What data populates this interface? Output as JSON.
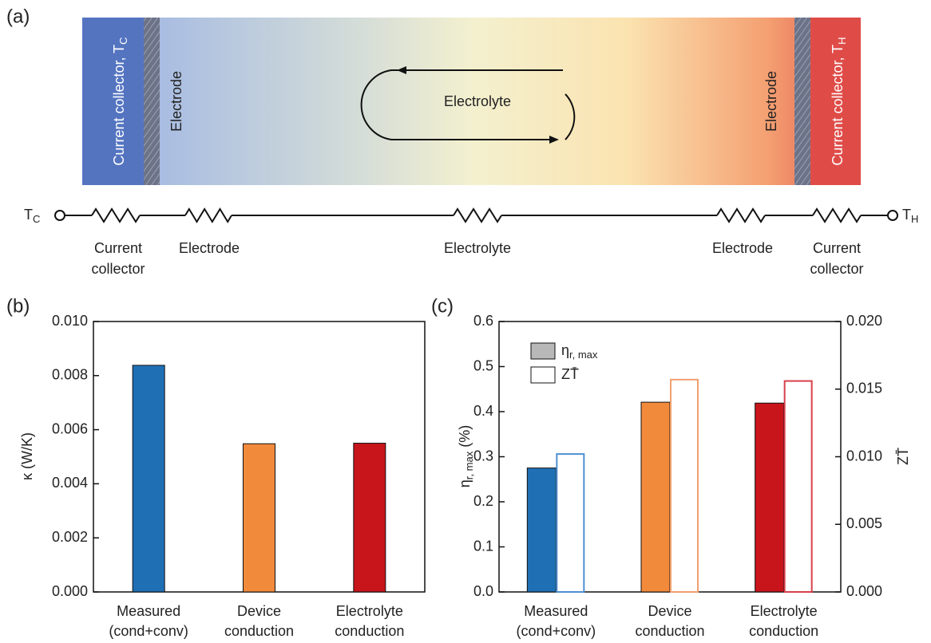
{
  "diagram": {
    "label": "(a)",
    "layers": [
      {
        "text": "Current collector, T",
        "sub": "C"
      },
      {
        "text": "Electrode"
      },
      {
        "text": "Electrolyte"
      },
      {
        "text": "Electrode"
      },
      {
        "text": "Current collector, T",
        "sub": "H"
      }
    ],
    "circuit": {
      "left": {
        "text": "T",
        "sub": "C"
      },
      "right": {
        "text": "T",
        "sub": "H"
      },
      "resistors": [
        [
          "Current",
          "collector"
        ],
        [
          "Electrode"
        ],
        [
          "Electrolyte"
        ],
        [
          "Electrode"
        ],
        [
          "Current",
          "collector"
        ]
      ]
    }
  },
  "chart_data": [
    {
      "type": "bar",
      "panel_label": "(b)",
      "y_label": "κ (W/K)",
      "categories": [
        [
          "Measured",
          "(cond+conv)"
        ],
        [
          "Device",
          "conduction"
        ],
        [
          "Electrolyte",
          "conduction"
        ]
      ],
      "values": [
        0.00838,
        0.00548,
        0.0055
      ],
      "colors": [
        "#1f6fb5",
        "#f28a3c",
        "#c8141b"
      ],
      "ylim": [
        0,
        0.01
      ],
      "yticks": [
        {
          "value": 0,
          "label": "0.000"
        },
        0.002,
        0.004,
        0.006,
        0.008,
        {
          "value": 0.01,
          "label": "0.010"
        }
      ]
    },
    {
      "type": "bar",
      "panel_label": "(c)",
      "y_label": {
        "text": "η",
        "sub": "r, max",
        "suffix": " (%)"
      },
      "y2_label": "ZT̄",
      "categories": [
        [
          "Measured",
          "(cond+conv)"
        ],
        [
          "Device",
          "conduction"
        ],
        [
          "Electrolyte",
          "conduction"
        ]
      ],
      "series": [
        {
          "name": "η",
          "name_sub": "r, max",
          "colors": [
            "#1f6fb5",
            "#f28a3c",
            "#c8141b"
          ],
          "values": [
            0.275,
            0.421,
            0.419
          ]
        },
        {
          "name": "ZT̄",
          "axis": "y2",
          "fill": "none",
          "colors": [
            "#4f8fd0",
            "#f0a070",
            "#d8404a"
          ],
          "values": [
            0.0102,
            0.0157,
            0.0156
          ]
        }
      ],
      "ylim": [
        0,
        0.6
      ],
      "yticks": [
        {
          "value": 0,
          "label": "0.0"
        },
        0.1,
        0.2,
        0.3,
        0.4,
        0.5,
        0.6
      ],
      "y2lim": [
        0,
        0.02
      ],
      "y2ticks": [
        {
          "value": 0,
          "label": "0.000"
        },
        0.005,
        {
          "value": 0.01,
          "label": "0.010"
        },
        0.015,
        {
          "value": 0.02,
          "label": "0.020"
        }
      ]
    }
  ]
}
